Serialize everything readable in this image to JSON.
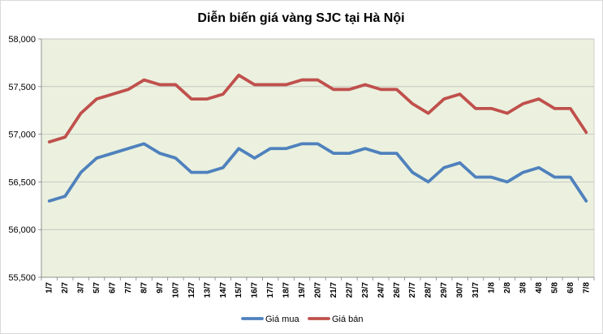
{
  "chart_data": {
    "type": "line",
    "title": "Diễn biến giá vàng SJC tại Hà Nội",
    "xlabel": "",
    "ylabel": "",
    "ylim": [
      55500,
      58000
    ],
    "ytick_step": 500,
    "ytick_labels": [
      "55,500",
      "56,000",
      "56,500",
      "57,000",
      "57,500",
      "58,000"
    ],
    "grid": true,
    "legend_position": "bottom",
    "background_color": "#ebf1de",
    "categories": [
      "1/7",
      "2/7",
      "3/7",
      "5/7",
      "6/7",
      "7/7",
      "8/7",
      "9/7",
      "10/7",
      "12/7",
      "13/7",
      "14/7",
      "15/7",
      "16/7",
      "17/7",
      "18/7",
      "19/7",
      "20/7",
      "21/7",
      "22/7",
      "23/7",
      "24/7",
      "26/7",
      "27/7",
      "28/7",
      "29/7",
      "30/7",
      "31/7",
      "1/8",
      "2/8",
      "3/8",
      "4/8",
      "5/8",
      "6/8",
      "7/8"
    ],
    "series": [
      {
        "name": "Giá mua",
        "color": "#4f81bd",
        "values": [
          56300,
          56350,
          56600,
          56750,
          56800,
          56850,
          56900,
          56800,
          56750,
          56600,
          56600,
          56650,
          56850,
          56750,
          56850,
          56850,
          56900,
          56900,
          56800,
          56800,
          56850,
          56800,
          56800,
          56600,
          56500,
          56650,
          56700,
          56550,
          56550,
          56500,
          56600,
          56650,
          56550,
          56550,
          56300
        ]
      },
      {
        "name": "Giá bán",
        "color": "#c0504d",
        "values": [
          56920,
          56970,
          57220,
          57370,
          57420,
          57470,
          57570,
          57520,
          57520,
          57370,
          57370,
          57420,
          57620,
          57520,
          57520,
          57520,
          57570,
          57570,
          57470,
          57470,
          57520,
          57470,
          57470,
          57320,
          57220,
          57370,
          57420,
          57270,
          57270,
          57220,
          57320,
          57370,
          57270,
          57270,
          57020
        ]
      }
    ]
  }
}
